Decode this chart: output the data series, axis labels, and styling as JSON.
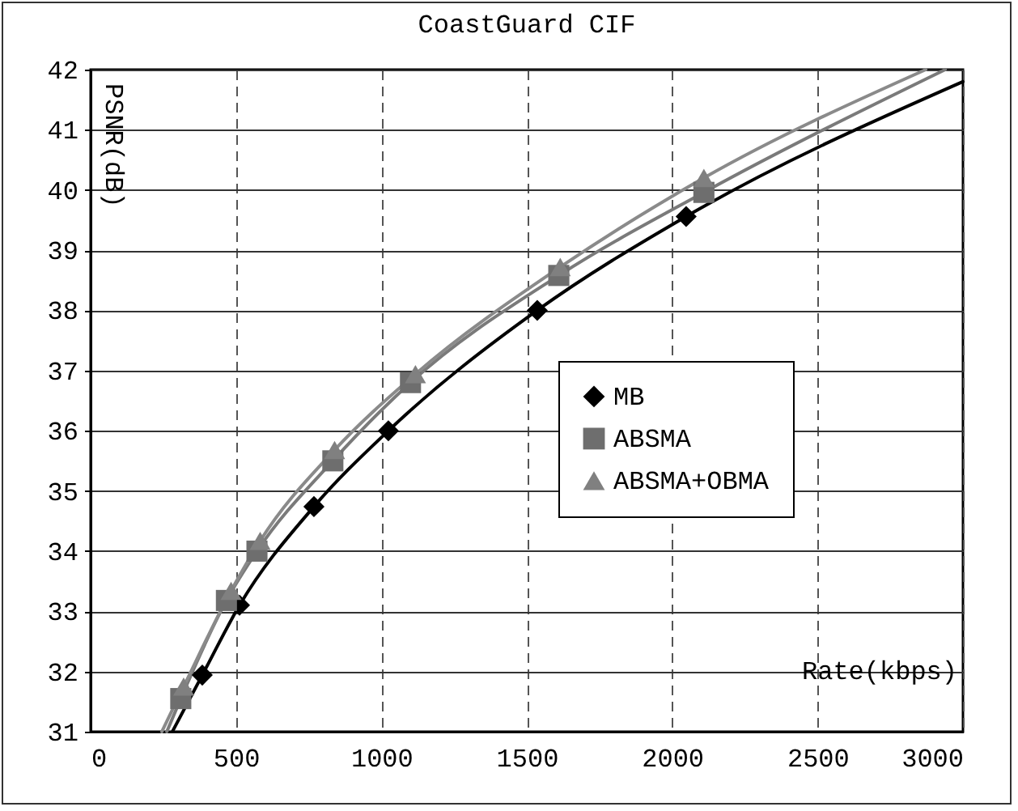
{
  "chart_data": {
    "type": "line",
    "title": "CoastGuard CIF",
    "xlabel": "Rate(kbps)",
    "ylabel": "PSNR(dB)",
    "xlim": [
      0,
      3000
    ],
    "xticks": [
      0,
      500,
      1000,
      1500,
      2000,
      2500,
      3000
    ],
    "ylim": [
      31,
      42
    ],
    "yticks": [
      31,
      32,
      33,
      34,
      35,
      36,
      37,
      38,
      39,
      40,
      41,
      42
    ],
    "grid": true,
    "legend": "right",
    "series": [
      {
        "type": "line",
        "color": "#000000",
        "marker": "none",
        "x": [
          281,
          384,
          512,
          768,
          1024,
          1536,
          2048,
          3000
        ],
        "values": [
          31,
          31.94,
          33.1,
          34.74,
          36.0,
          38.0,
          39.56,
          41.8
        ]
      },
      {
        "type": "line",
        "color": "#7a7a7a",
        "marker": "none",
        "x": [
          262,
          310,
          467,
          572,
          833,
          1100,
          1610,
          2109,
          2939
        ],
        "values": [
          31,
          31.55,
          33.18,
          34.0,
          35.5,
          36.8,
          38.58,
          39.96,
          42
        ]
      },
      {
        "type": "line",
        "color": "#8a8a8a",
        "marker": "none",
        "x": [
          245,
          320,
          483,
          583,
          839,
          1117,
          1615,
          2109,
          2872
        ],
        "values": [
          31,
          31.75,
          33.34,
          34.17,
          35.68,
          36.94,
          38.72,
          40.2,
          42
        ]
      },
      {
        "type": "scatter",
        "name": "MB",
        "color": "#000000",
        "marker": "diamond",
        "x": [
          384,
          512,
          768,
          1024,
          1536,
          2048
        ],
        "values": [
          31.94,
          33.1,
          34.74,
          36.0,
          38.0,
          39.56
        ]
      },
      {
        "type": "scatter",
        "name": "ABSMA",
        "color": "#6e6e6e",
        "marker": "square",
        "x": [
          310,
          467,
          572,
          833,
          1100,
          1610,
          2109
        ],
        "values": [
          31.55,
          33.18,
          34.0,
          35.5,
          36.8,
          38.58,
          39.96
        ]
      },
      {
        "type": "scatter",
        "name": "ABSMA+OBMA",
        "color": "#808080",
        "marker": "triangle",
        "x": [
          320,
          483,
          583,
          839,
          1117,
          1615,
          2109
        ],
        "values": [
          31.75,
          33.34,
          34.17,
          35.68,
          36.94,
          38.72,
          40.2
        ]
      }
    ]
  }
}
